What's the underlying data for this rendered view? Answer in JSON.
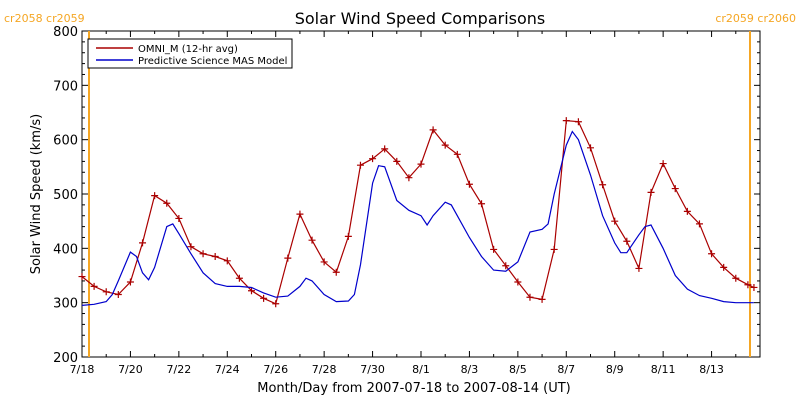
{
  "chart_data": {
    "type": "line",
    "title": "Solar Wind Speed Comparisons",
    "xlabel": "Month/Day from 2007-07-18 to 2007-08-14 (UT)",
    "ylabel": "Solar Wind Speed (km/s)",
    "xlim": [
      "2007-07-18T00:00",
      "2007-08-15T00:00"
    ],
    "ylim": [
      200,
      800
    ],
    "x_tick_labels": [
      "7/18",
      "7/20",
      "7/22",
      "7/24",
      "7/26",
      "7/28",
      "7/30",
      "8/1",
      "8/3",
      "8/5",
      "8/7",
      "8/9",
      "8/11",
      "8/13"
    ],
    "y_tick_labels": [
      "200",
      "300",
      "400",
      "500",
      "600",
      "700",
      "800"
    ],
    "legend_position": "top-left",
    "carrington_labels": {
      "left": "cr2058 cr2059",
      "right": "cr2059 cr2060",
      "color": "#f5a623"
    },
    "series": [
      {
        "name": "OMNI_M (12-hr avg)",
        "color": "#aa0000",
        "marker": "plus",
        "points": [
          [
            "2007-07-18T00:00",
            348
          ],
          [
            "2007-07-18T12:00",
            330
          ],
          [
            "2007-07-19T00:00",
            320
          ],
          [
            "2007-07-19T12:00",
            315
          ],
          [
            "2007-07-20T00:00",
            338
          ],
          [
            "2007-07-20T12:00",
            410
          ],
          [
            "2007-07-21T00:00",
            497
          ],
          [
            "2007-07-21T12:00",
            483
          ],
          [
            "2007-07-22T00:00",
            455
          ],
          [
            "2007-07-22T12:00",
            403
          ],
          [
            "2007-07-23T00:00",
            390
          ],
          [
            "2007-07-23T12:00",
            385
          ],
          [
            "2007-07-24T00:00",
            377
          ],
          [
            "2007-07-24T12:00",
            345
          ],
          [
            "2007-07-25T00:00",
            322
          ],
          [
            "2007-07-25T12:00",
            308
          ],
          [
            "2007-07-26T00:00",
            298
          ],
          [
            "2007-07-26T12:00",
            382
          ],
          [
            "2007-07-27T00:00",
            463
          ],
          [
            "2007-07-27T12:00",
            415
          ],
          [
            "2007-07-28T00:00",
            375
          ],
          [
            "2007-07-28T12:00",
            356
          ],
          [
            "2007-07-29T00:00",
            422
          ],
          [
            "2007-07-29T12:00",
            553
          ],
          [
            "2007-07-30T00:00",
            565
          ],
          [
            "2007-07-30T12:00",
            583
          ],
          [
            "2007-07-31T00:00",
            560
          ],
          [
            "2007-07-31T12:00",
            530
          ],
          [
            "2007-08-01T00:00",
            555
          ],
          [
            "2007-08-01T12:00",
            618
          ],
          [
            "2007-08-02T00:00",
            590
          ],
          [
            "2007-08-02T12:00",
            573
          ],
          [
            "2007-08-03T00:00",
            518
          ],
          [
            "2007-08-03T12:00",
            482
          ],
          [
            "2007-08-04T00:00",
            398
          ],
          [
            "2007-08-04T12:00",
            368
          ],
          [
            "2007-08-05T00:00",
            338
          ],
          [
            "2007-08-05T12:00",
            310
          ],
          [
            "2007-08-06T00:00",
            306
          ],
          [
            "2007-08-06T12:00",
            398
          ],
          [
            "2007-08-07T00:00",
            635
          ],
          [
            "2007-08-07T12:00",
            633
          ],
          [
            "2007-08-08T00:00",
            585
          ],
          [
            "2007-08-08T12:00",
            517
          ],
          [
            "2007-08-09T00:00",
            450
          ],
          [
            "2007-08-09T12:00",
            413
          ],
          [
            "2007-08-10T00:00",
            363
          ],
          [
            "2007-08-10T12:00",
            503
          ],
          [
            "2007-08-11T00:00",
            556
          ],
          [
            "2007-08-11T12:00",
            510
          ],
          [
            "2007-08-12T00:00",
            468
          ],
          [
            "2007-08-12T12:00",
            445
          ],
          [
            "2007-08-13T00:00",
            390
          ],
          [
            "2007-08-13T12:00",
            365
          ],
          [
            "2007-08-14T00:00",
            345
          ],
          [
            "2007-08-14T12:00",
            333
          ],
          [
            "2007-08-14T18:00",
            328
          ]
        ]
      },
      {
        "name": "Predictive Science MAS Model",
        "color": "#0000cc",
        "marker": "none",
        "points": [
          [
            "2007-07-18T00:00",
            295
          ],
          [
            "2007-07-18T12:00",
            297
          ],
          [
            "2007-07-19T00:00",
            302
          ],
          [
            "2007-07-19T06:00",
            315
          ],
          [
            "2007-07-19T12:00",
            340
          ],
          [
            "2007-07-20T00:00",
            393
          ],
          [
            "2007-07-20T06:00",
            385
          ],
          [
            "2007-07-20T12:00",
            355
          ],
          [
            "2007-07-20T18:00",
            342
          ],
          [
            "2007-07-21T00:00",
            365
          ],
          [
            "2007-07-21T12:00",
            440
          ],
          [
            "2007-07-21T18:00",
            445
          ],
          [
            "2007-07-22T00:00",
            427
          ],
          [
            "2007-07-22T12:00",
            390
          ],
          [
            "2007-07-23T00:00",
            355
          ],
          [
            "2007-07-23T12:00",
            335
          ],
          [
            "2007-07-24T00:00",
            330
          ],
          [
            "2007-07-24T12:00",
            330
          ],
          [
            "2007-07-25T00:00",
            328
          ],
          [
            "2007-07-25T12:00",
            318
          ],
          [
            "2007-07-26T00:00",
            310
          ],
          [
            "2007-07-26T12:00",
            312
          ],
          [
            "2007-07-27T00:00",
            330
          ],
          [
            "2007-07-27T06:00",
            345
          ],
          [
            "2007-07-27T12:00",
            340
          ],
          [
            "2007-07-28T00:00",
            315
          ],
          [
            "2007-07-28T12:00",
            302
          ],
          [
            "2007-07-29T00:00",
            303
          ],
          [
            "2007-07-29T06:00",
            315
          ],
          [
            "2007-07-29T12:00",
            370
          ],
          [
            "2007-07-30T00:00",
            520
          ],
          [
            "2007-07-30T06:00",
            552
          ],
          [
            "2007-07-30T12:00",
            550
          ],
          [
            "2007-07-31T00:00",
            488
          ],
          [
            "2007-07-31T12:00",
            470
          ],
          [
            "2007-08-01T00:00",
            460
          ],
          [
            "2007-08-01T06:00",
            443
          ],
          [
            "2007-08-01T12:00",
            460
          ],
          [
            "2007-08-02T00:00",
            485
          ],
          [
            "2007-08-02T06:00",
            480
          ],
          [
            "2007-08-02T12:00",
            460
          ],
          [
            "2007-08-03T00:00",
            420
          ],
          [
            "2007-08-03T12:00",
            385
          ],
          [
            "2007-08-04T00:00",
            360
          ],
          [
            "2007-08-04T12:00",
            358
          ],
          [
            "2007-08-05T00:00",
            375
          ],
          [
            "2007-08-05T12:00",
            430
          ],
          [
            "2007-08-06T00:00",
            435
          ],
          [
            "2007-08-06T06:00",
            445
          ],
          [
            "2007-08-06T12:00",
            500
          ],
          [
            "2007-08-07T00:00",
            590
          ],
          [
            "2007-08-07T06:00",
            615
          ],
          [
            "2007-08-07T12:00",
            600
          ],
          [
            "2007-08-08T00:00",
            535
          ],
          [
            "2007-08-08T12:00",
            460
          ],
          [
            "2007-08-09T00:00",
            410
          ],
          [
            "2007-08-09T06:00",
            392
          ],
          [
            "2007-08-09T12:00",
            392
          ],
          [
            "2007-08-10T00:00",
            425
          ],
          [
            "2007-08-10T06:00",
            440
          ],
          [
            "2007-08-10T12:00",
            443
          ],
          [
            "2007-08-11T00:00",
            400
          ],
          [
            "2007-08-11T12:00",
            350
          ],
          [
            "2007-08-12T00:00",
            325
          ],
          [
            "2007-08-12T12:00",
            313
          ],
          [
            "2007-08-13T00:00",
            308
          ],
          [
            "2007-08-13T12:00",
            302
          ],
          [
            "2007-08-14T00:00",
            300
          ],
          [
            "2007-08-14T12:00",
            300
          ],
          [
            "2007-08-14T18:00",
            300
          ]
        ]
      }
    ]
  }
}
